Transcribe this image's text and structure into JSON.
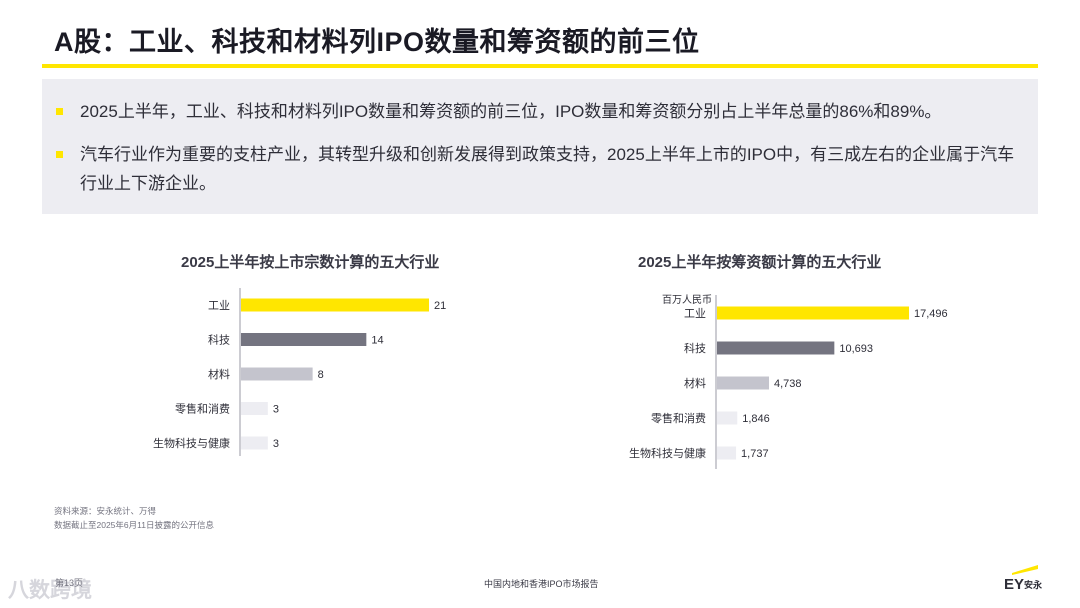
{
  "header": {
    "title": "A股：工业、科技和材料列IPO数量和筹资额的前三位"
  },
  "summary": {
    "bullets": [
      "2025上半年，工业、科技和材料列IPO数量和筹资额的前三位，IPO数量和筹资额分别占上半年总量的86%和89%。",
      "汽车行业作为重要的支柱产业，其转型升级和创新发展得到政策支持，2025上半年上市的IPO中，有三成左右的企业属于汽车行业上下游企业。"
    ]
  },
  "colors": {
    "accent": "#ffe600",
    "dark_gray": "#747480",
    "light_gray": "#c4c4cd",
    "lightest_gray": "#ededf2"
  },
  "chart_data": [
    {
      "type": "bar",
      "orientation": "horizontal",
      "title": "2025上半年按上市宗数计算的五大行业",
      "unit": "",
      "categories": [
        "工业",
        "科技",
        "材料",
        "零售和消费",
        "生物科技与健康"
      ],
      "values": [
        21,
        14,
        8,
        3,
        3
      ],
      "value_labels": [
        "21",
        "14",
        "8",
        "3",
        "3"
      ],
      "bar_colors": [
        "#ffe600",
        "#747480",
        "#c4c4cd",
        "#ededf2",
        "#ededf2"
      ],
      "xlim": [
        0,
        21
      ]
    },
    {
      "type": "bar",
      "orientation": "horizontal",
      "title": "2025上半年按筹资额计算的五大行业",
      "unit": "百万人民币",
      "categories": [
        "工业",
        "科技",
        "材料",
        "零售和消费",
        "生物科技与健康"
      ],
      "values": [
        17496,
        10693,
        4738,
        1846,
        1737
      ],
      "value_labels": [
        "17,496",
        "10,693",
        "4,738",
        "1,846",
        "1,737"
      ],
      "bar_colors": [
        "#ffe600",
        "#747480",
        "#c4c4cd",
        "#ededf2",
        "#ededf2"
      ],
      "xlim": [
        0,
        17496
      ]
    }
  ],
  "footnotes": [
    "资料来源：安永统计、万得",
    "数据截止至2025年6月11日披露的公开信息"
  ],
  "footer": {
    "page": "第13页",
    "center": "中国内地和香港IPO市场报告",
    "logo_text": "EY安永",
    "watermark": "八数跨境"
  }
}
